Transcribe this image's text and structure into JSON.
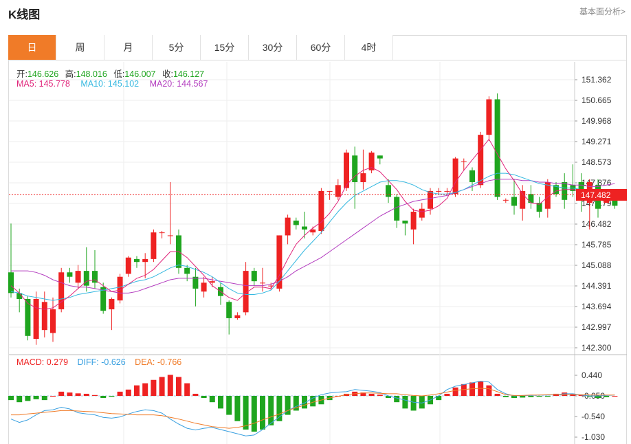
{
  "page": {
    "title": "K线图",
    "top_link": "基本面分析>"
  },
  "tabs": [
    {
      "label": "日",
      "active": true
    },
    {
      "label": "周",
      "active": false
    },
    {
      "label": "月",
      "active": false
    },
    {
      "label": "5分",
      "active": false
    },
    {
      "label": "15分",
      "active": false
    },
    {
      "label": "30分",
      "active": false
    },
    {
      "label": "60分",
      "active": false
    },
    {
      "label": "4时",
      "active": false
    }
  ],
  "ohlc_legend": {
    "open_label": "开:",
    "open": "146.626",
    "high_label": "高:",
    "high": "148.016",
    "low_label": "低:",
    "low": "146.007",
    "close_label": "收:",
    "close": "146.127"
  },
  "ma_legend": {
    "ma5": "MA5: 145.778",
    "ma10": "MA10: 145.102",
    "ma20": "MA20: 144.567"
  },
  "macd_legend": {
    "macd": "MACD: 0.279",
    "diff": "DIFF: -0.626",
    "dea": "DEA: -0.766"
  },
  "colors": {
    "up": "#ee2222",
    "down": "#1fa51f",
    "ma5": "#e0247a",
    "ma10": "#35b8e0",
    "ma20": "#b33cbf",
    "dea": "#f07b28",
    "diff": "#3aa0e0",
    "current": "#ee2222",
    "grid": "#eeeeee"
  },
  "chart_data": [
    {
      "type": "candlestick",
      "y_ticks": [
        "151.362",
        "150.665",
        "149.968",
        "149.271",
        "148.573",
        "147.876",
        "147.179",
        "146.482",
        "145.785",
        "145.088",
        "144.391",
        "143.694",
        "142.997",
        "142.300"
      ],
      "ylim": [
        142.3,
        151.362
      ],
      "current_price": "147.482",
      "candles": [
        [
          144.85,
          144.15,
          144.0,
          146.5
        ],
        [
          144.15,
          143.95,
          143.5,
          144.3
        ],
        [
          143.95,
          142.7,
          142.55,
          144.05
        ],
        [
          142.6,
          143.95,
          142.4,
          144.2
        ],
        [
          142.9,
          143.85,
          142.65,
          144.2
        ],
        [
          142.8,
          143.6,
          142.5,
          144.0
        ],
        [
          143.6,
          144.85,
          143.5,
          145.0
        ],
        [
          144.85,
          144.7,
          144.5,
          145.0
        ],
        [
          144.5,
          144.9,
          144.3,
          145.1
        ],
        [
          144.9,
          144.4,
          144.2,
          145.7
        ],
        [
          144.9,
          144.5,
          144.3,
          145.6
        ],
        [
          144.35,
          143.55,
          143.45,
          144.5
        ],
        [
          143.6,
          143.95,
          142.9,
          144.0
        ],
        [
          143.9,
          144.7,
          143.8,
          144.8
        ],
        [
          144.8,
          145.35,
          144.7,
          145.4
        ],
        [
          145.3,
          145.2,
          145.0,
          145.4
        ],
        [
          145.2,
          145.3,
          144.65,
          145.5
        ],
        [
          145.3,
          146.2,
          145.2,
          146.3
        ],
        [
          146.2,
          146.2,
          146.0,
          146.25
        ],
        [
          146.1,
          146.1,
          145.8,
          147.9
        ],
        [
          146.1,
          145.0,
          144.8,
          146.3
        ],
        [
          145.0,
          144.8,
          144.55,
          145.1
        ],
        [
          144.7,
          144.3,
          143.7,
          145.0
        ],
        [
          144.2,
          144.5,
          144.0,
          144.7
        ],
        [
          144.5,
          144.55,
          144.35,
          144.7
        ],
        [
          144.35,
          144.05,
          143.75,
          144.5
        ],
        [
          143.85,
          143.3,
          142.75,
          143.9
        ],
        [
          143.3,
          143.4,
          143.25,
          143.5
        ],
        [
          143.5,
          144.9,
          143.4,
          145.2
        ],
        [
          144.9,
          144.55,
          144.4,
          145.0
        ],
        [
          144.5,
          144.5,
          144.2,
          145.0
        ],
        [
          144.4,
          144.4,
          144.25,
          144.5
        ],
        [
          144.3,
          146.1,
          144.2,
          146.1
        ],
        [
          146.1,
          146.7,
          145.8,
          146.8
        ],
        [
          146.6,
          146.45,
          146.3,
          146.7
        ],
        [
          146.4,
          146.3,
          146.0,
          146.9
        ],
        [
          146.2,
          146.3,
          146.1,
          146.4
        ],
        [
          146.25,
          147.6,
          146.15,
          147.7
        ],
        [
          147.6,
          147.6,
          147.3,
          147.6
        ],
        [
          147.4,
          147.8,
          147.3,
          148.0
        ],
        [
          147.7,
          148.9,
          147.6,
          149.0
        ],
        [
          148.8,
          147.9,
          147.0,
          149.1
        ],
        [
          147.9,
          148.2,
          147.65,
          149.0
        ],
        [
          148.3,
          148.9,
          148.2,
          148.95
        ],
        [
          148.8,
          148.7,
          148.5,
          148.8
        ],
        [
          147.8,
          147.4,
          147.2,
          148.0
        ],
        [
          147.4,
          146.6,
          146.35,
          147.5
        ],
        [
          146.6,
          146.5,
          146.1,
          146.6
        ],
        [
          146.3,
          146.9,
          145.8,
          147.0
        ],
        [
          146.7,
          147.0,
          146.6,
          147.2
        ],
        [
          147.0,
          147.6,
          146.8,
          147.7
        ],
        [
          147.6,
          147.6,
          147.5,
          147.7
        ],
        [
          147.6,
          147.6,
          147.5,
          147.7
        ],
        [
          147.5,
          148.7,
          147.4,
          148.75
        ],
        [
          148.6,
          148.6,
          148.3,
          148.7
        ],
        [
          148.3,
          147.9,
          147.6,
          148.4
        ],
        [
          147.8,
          149.5,
          147.7,
          149.6
        ],
        [
          149.5,
          150.7,
          149.3,
          150.8
        ],
        [
          150.7,
          147.4,
          147.3,
          150.9
        ],
        [
          147.3,
          147.3,
          147.2,
          147.35
        ],
        [
          147.4,
          147.1,
          146.8,
          148.0
        ],
        [
          147.0,
          147.6,
          146.6,
          147.8
        ],
        [
          147.5,
          147.2,
          147.0,
          147.8
        ],
        [
          147.2,
          146.9,
          146.7,
          147.4
        ],
        [
          147.0,
          147.9,
          146.7,
          148.0
        ],
        [
          147.8,
          147.5,
          147.4,
          147.9
        ],
        [
          147.9,
          147.3,
          147.0,
          148.2
        ],
        [
          147.8,
          147.6,
          147.4,
          148.5
        ],
        [
          147.9,
          147.4,
          146.9,
          148.2
        ],
        [
          147.2,
          147.9,
          146.3,
          148.0
        ],
        [
          147.8,
          147.0,
          146.7,
          148.0
        ],
        [
          147.2,
          147.3,
          147.2,
          147.4
        ],
        [
          147.5,
          147.1,
          147.0,
          147.6
        ]
      ],
      "ma5": [
        144.4,
        144.15,
        143.8,
        143.65,
        143.6,
        143.65,
        143.85,
        144.05,
        144.3,
        144.55,
        144.6,
        144.4,
        144.2,
        144.25,
        144.45,
        144.65,
        144.75,
        144.95,
        145.25,
        145.55,
        145.55,
        145.35,
        145.05,
        144.75,
        144.4,
        144.2,
        144.0,
        143.9,
        144.15,
        144.35,
        144.35,
        144.3,
        144.75,
        145.3,
        145.8,
        146.1,
        146.35,
        146.55,
        146.85,
        147.25,
        147.8,
        148.1,
        148.3,
        148.4,
        148.25,
        147.95,
        147.65,
        147.25,
        146.95,
        146.9,
        146.95,
        147.1,
        147.35,
        147.9,
        148.3,
        148.65,
        149.0,
        149.35,
        148.85,
        148.35,
        147.95,
        147.5,
        147.2,
        147.15,
        147.4,
        147.6,
        147.65,
        147.65,
        147.6,
        147.5,
        147.45,
        147.4,
        147.35
      ],
      "ma10": [
        144.2,
        144.15,
        144.05,
        144.0,
        143.95,
        143.9,
        143.95,
        144.0,
        144.1,
        144.15,
        144.2,
        144.25,
        144.3,
        144.35,
        144.45,
        144.55,
        144.6,
        144.7,
        144.85,
        145.0,
        145.1,
        145.05,
        144.95,
        144.85,
        144.7,
        144.5,
        144.3,
        144.15,
        144.1,
        144.1,
        144.15,
        144.25,
        144.55,
        144.9,
        145.25,
        145.6,
        145.9,
        146.2,
        146.55,
        146.9,
        147.2,
        147.45,
        147.6,
        147.75,
        147.9,
        147.95,
        147.95,
        147.9,
        147.8,
        147.65,
        147.55,
        147.5,
        147.5,
        147.55,
        147.65,
        147.8,
        147.95,
        148.1,
        148.2,
        148.2,
        148.15,
        148.05,
        147.95,
        147.85,
        147.8,
        147.75,
        147.7,
        147.7,
        147.65,
        147.6,
        147.55,
        147.55,
        147.55
      ],
      "ma20": [
        144.9,
        144.9,
        144.9,
        144.85,
        144.75,
        144.6,
        144.5,
        144.4,
        144.35,
        144.35,
        144.3,
        144.25,
        144.2,
        144.15,
        144.15,
        144.2,
        144.3,
        144.4,
        144.5,
        144.6,
        144.65,
        144.65,
        144.65,
        144.65,
        144.6,
        144.55,
        144.5,
        144.45,
        144.4,
        144.4,
        144.4,
        144.45,
        144.55,
        144.7,
        144.9,
        145.05,
        145.2,
        145.35,
        145.55,
        145.75,
        145.95,
        146.15,
        146.35,
        146.55,
        146.75,
        146.9,
        147.05,
        147.15,
        147.25,
        147.3,
        147.35,
        147.4,
        147.45,
        147.55,
        147.65,
        147.75,
        147.85,
        147.95,
        148.0,
        148.0,
        148.0,
        147.95,
        147.95,
        147.9,
        147.9,
        147.85,
        147.85,
        147.8,
        147.8,
        147.75,
        147.75,
        147.8,
        147.85
      ]
    },
    {
      "type": "bar",
      "y_ticks": [
        "0.440",
        "-0.050",
        "-0.540",
        "-1.030"
      ],
      "ylim": [
        -1.1,
        0.6
      ],
      "macd": [
        -0.1,
        -0.15,
        -0.12,
        -0.08,
        -0.1,
        0.0,
        0.1,
        0.08,
        0.06,
        0.05,
        0.02,
        -0.05,
        -0.02,
        0.1,
        0.15,
        0.25,
        0.3,
        0.38,
        0.45,
        0.5,
        0.45,
        0.3,
        0.05,
        -0.05,
        -0.15,
        -0.3,
        -0.45,
        -0.6,
        -0.8,
        -0.85,
        -0.8,
        -0.7,
        -0.6,
        -0.45,
        -0.35,
        -0.3,
        -0.25,
        -0.2,
        -0.1,
        0.0,
        0.05,
        0.1,
        0.08,
        0.05,
        0.03,
        -0.05,
        -0.15,
        -0.3,
        -0.35,
        -0.3,
        -0.2,
        -0.1,
        0.05,
        0.2,
        0.28,
        0.32,
        0.35,
        0.25,
        0.05,
        -0.03,
        -0.05,
        -0.04,
        -0.03,
        -0.02,
        -0.02,
        0.05,
        0.08,
        0.05,
        0.02,
        -0.02,
        -0.05,
        -0.03,
        0.0
      ],
      "diff": [
        -0.6,
        -0.68,
        -0.62,
        -0.5,
        -0.4,
        -0.38,
        -0.32,
        -0.36,
        -0.45,
        -0.48,
        -0.5,
        -0.56,
        -0.58,
        -0.55,
        -0.48,
        -0.42,
        -0.38,
        -0.4,
        -0.46,
        -0.6,
        -0.72,
        -0.82,
        -0.86,
        -0.82,
        -0.8,
        -0.85,
        -0.9,
        -0.95,
        -1.0,
        -0.98,
        -0.85,
        -0.7,
        -0.55,
        -0.4,
        -0.3,
        -0.22,
        -0.1,
        -0.02,
        0.02,
        0.04,
        0.05,
        0.1,
        0.08,
        0.06,
        0.03,
        -0.05,
        -0.1,
        -0.15,
        -0.2,
        -0.22,
        -0.15,
        -0.05,
        0.1,
        0.18,
        0.22,
        0.26,
        0.3,
        0.28,
        0.1,
        0.0,
        -0.05,
        -0.04,
        -0.04,
        -0.03,
        -0.03,
        -0.02,
        0.0,
        0.0,
        -0.03,
        -0.05,
        -0.05,
        -0.04,
        -0.03
      ],
      "dea": [
        -0.5,
        -0.5,
        -0.48,
        -0.46,
        -0.44,
        -0.42,
        -0.4,
        -0.4,
        -0.41,
        -0.42,
        -0.43,
        -0.45,
        -0.47,
        -0.48,
        -0.49,
        -0.5,
        -0.5,
        -0.5,
        -0.52,
        -0.56,
        -0.6,
        -0.65,
        -0.7,
        -0.74,
        -0.78,
        -0.8,
        -0.82,
        -0.8,
        -0.76,
        -0.7,
        -0.62,
        -0.55,
        -0.48,
        -0.4,
        -0.33,
        -0.27,
        -0.2,
        -0.15,
        -0.1,
        -0.06,
        -0.02,
        0.0,
        0.02,
        0.02,
        0.01,
        0.0,
        0.0,
        -0.02,
        -0.04,
        -0.05,
        -0.03,
        0.0,
        0.04,
        0.08,
        0.1,
        0.12,
        0.13,
        0.12,
        0.05,
        -0.02,
        -0.04,
        -0.04,
        -0.03,
        -0.03,
        -0.02,
        -0.02,
        -0.02,
        -0.02,
        -0.02,
        -0.03,
        -0.03,
        -0.03,
        -0.03
      ]
    }
  ]
}
